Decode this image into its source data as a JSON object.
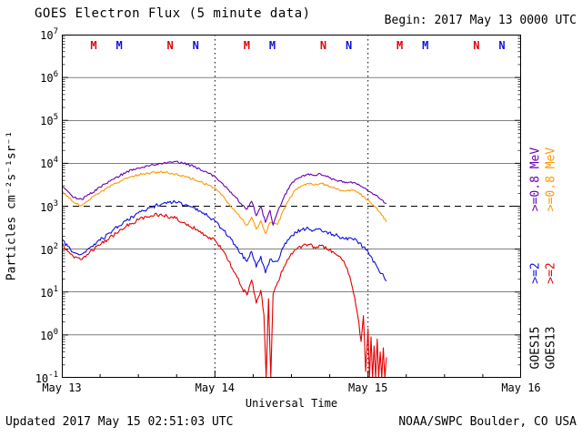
{
  "header": {
    "title": "GOES Electron Flux (5 minute data)",
    "begin_label": "Begin: 2017 May 13 0000 UTC"
  },
  "footer": {
    "updated": "Updated 2017 May 15 02:51:03 UTC",
    "source": "NOAA/SWPC Boulder, CO USA"
  },
  "axes": {
    "y_label": "Particles cm⁻²s⁻¹sr⁻¹",
    "y_exponents": [
      7,
      6,
      5,
      4,
      3,
      2,
      1,
      0,
      -1
    ],
    "x_label": "Universal Time",
    "x_ticks": [
      "May 13",
      "May 14",
      "May 15",
      "May 16"
    ]
  },
  "legend": {
    "columns": [
      {
        "satellite": "GOES15",
        "entries": [
          {
            "label": ">=0.8 MeV",
            "color": "#6a00b4"
          },
          {
            "label": ">=2",
            "color": "#0f0fe0"
          }
        ]
      },
      {
        "satellite": "GOES13",
        "entries": [
          {
            "label": ">=0.8 MeV",
            "color": "#ff9900"
          },
          {
            "label": ">=2",
            "color": "#e00000"
          }
        ]
      }
    ]
  },
  "chart_data": {
    "type": "line",
    "title": "GOES Electron Flux (5 minute data)",
    "x_axis": {
      "label": "Universal Time",
      "start": "2017 May 13 0000 UTC",
      "end": "2017 May 16 0000 UTC",
      "units": "days since start",
      "span_days": 3,
      "ticks": [
        "May 13",
        "May 14",
        "May 15",
        "May 16"
      ]
    },
    "y_axis": {
      "label": "Particles cm⁻²s⁻¹sr⁻¹",
      "scale": "log",
      "exponent_range": [
        -1,
        7
      ]
    },
    "threshold_line": {
      "exponent": 3,
      "flux": 1000,
      "style": "dashed"
    },
    "day_boundaries": [
      1,
      2
    ],
    "series": [
      {
        "name": "GOES15 >=0.8 MeV",
        "color": "#6a00b4",
        "points": [
          [
            0,
            2800
          ],
          [
            0.04,
            2200
          ],
          [
            0.08,
            1600
          ],
          [
            0.13,
            1450
          ],
          [
            0.18,
            1900
          ],
          [
            0.25,
            2800
          ],
          [
            0.33,
            4200
          ],
          [
            0.42,
            6200
          ],
          [
            0.5,
            7800
          ],
          [
            0.58,
            9000
          ],
          [
            0.66,
            9800
          ],
          [
            0.74,
            11000
          ],
          [
            0.82,
            9500
          ],
          [
            0.9,
            7500
          ],
          [
            0.96,
            5800
          ],
          [
            1.0,
            5000
          ],
          [
            1.05,
            3400
          ],
          [
            1.09,
            2400
          ],
          [
            1.13,
            1700
          ],
          [
            1.17,
            1150
          ],
          [
            1.21,
            850
          ],
          [
            1.24,
            1300
          ],
          [
            1.27,
            600
          ],
          [
            1.3,
            1000
          ],
          [
            1.33,
            420
          ],
          [
            1.36,
            800
          ],
          [
            1.38,
            360
          ],
          [
            1.41,
            750
          ],
          [
            1.45,
            1600
          ],
          [
            1.49,
            3000
          ],
          [
            1.53,
            4300
          ],
          [
            1.57,
            5100
          ],
          [
            1.61,
            5700
          ],
          [
            1.65,
            5200
          ],
          [
            1.69,
            5600
          ],
          [
            1.73,
            4900
          ],
          [
            1.77,
            4300
          ],
          [
            1.81,
            3900
          ],
          [
            1.85,
            3500
          ],
          [
            1.89,
            3700
          ],
          [
            1.93,
            3200
          ],
          [
            1.97,
            2700
          ],
          [
            2.01,
            2200
          ],
          [
            2.05,
            1800
          ],
          [
            2.09,
            1400
          ],
          [
            2.12,
            1150
          ]
        ]
      },
      {
        "name": "GOES13 >=0.8 MeV",
        "color": "#ff9900",
        "points": [
          [
            0,
            2300
          ],
          [
            0.04,
            1700
          ],
          [
            0.08,
            1200
          ],
          [
            0.13,
            1050
          ],
          [
            0.18,
            1400
          ],
          [
            0.25,
            2100
          ],
          [
            0.33,
            3100
          ],
          [
            0.42,
            4500
          ],
          [
            0.5,
            5400
          ],
          [
            0.58,
            6000
          ],
          [
            0.64,
            6300
          ],
          [
            0.72,
            5900
          ],
          [
            0.8,
            5000
          ],
          [
            0.88,
            4000
          ],
          [
            0.95,
            3200
          ],
          [
            1.0,
            2700
          ],
          [
            1.05,
            1800
          ],
          [
            1.09,
            1150
          ],
          [
            1.13,
            780
          ],
          [
            1.17,
            520
          ],
          [
            1.21,
            360
          ],
          [
            1.24,
            560
          ],
          [
            1.27,
            290
          ],
          [
            1.3,
            460
          ],
          [
            1.33,
            230
          ],
          [
            1.36,
            420
          ],
          [
            1.41,
            380
          ],
          [
            1.45,
            850
          ],
          [
            1.49,
            1600
          ],
          [
            1.53,
            2500
          ],
          [
            1.57,
            3000
          ],
          [
            1.61,
            3400
          ],
          [
            1.65,
            3100
          ],
          [
            1.69,
            3450
          ],
          [
            1.73,
            3050
          ],
          [
            1.77,
            2700
          ],
          [
            1.81,
            2450
          ],
          [
            1.85,
            2250
          ],
          [
            1.89,
            2400
          ],
          [
            1.93,
            2100
          ],
          [
            1.97,
            1700
          ],
          [
            2.01,
            1300
          ],
          [
            2.05,
            950
          ],
          [
            2.09,
            620
          ],
          [
            2.12,
            430
          ]
        ]
      },
      {
        "name": "GOES15 >=2 MeV",
        "color": "#0f0fe0",
        "points": [
          [
            0,
            160
          ],
          [
            0.04,
            115
          ],
          [
            0.08,
            82
          ],
          [
            0.13,
            76
          ],
          [
            0.18,
            105
          ],
          [
            0.25,
            160
          ],
          [
            0.33,
            270
          ],
          [
            0.42,
            460
          ],
          [
            0.5,
            700
          ],
          [
            0.58,
            950
          ],
          [
            0.66,
            1150
          ],
          [
            0.74,
            1250
          ],
          [
            0.82,
            1050
          ],
          [
            0.9,
            780
          ],
          [
            0.96,
            560
          ],
          [
            1.0,
            450
          ],
          [
            1.05,
            290
          ],
          [
            1.09,
            195
          ],
          [
            1.13,
            128
          ],
          [
            1.17,
            78
          ],
          [
            1.21,
            52
          ],
          [
            1.24,
            88
          ],
          [
            1.27,
            38
          ],
          [
            1.3,
            68
          ],
          [
            1.33,
            28
          ],
          [
            1.36,
            58
          ],
          [
            1.41,
            52
          ],
          [
            1.45,
            115
          ],
          [
            1.49,
            185
          ],
          [
            1.53,
            245
          ],
          [
            1.57,
            285
          ],
          [
            1.61,
            305
          ],
          [
            1.65,
            272
          ],
          [
            1.69,
            292
          ],
          [
            1.73,
            252
          ],
          [
            1.77,
            222
          ],
          [
            1.81,
            196
          ],
          [
            1.85,
            172
          ],
          [
            1.89,
            182
          ],
          [
            1.93,
            152
          ],
          [
            1.97,
            112
          ],
          [
            2.01,
            72
          ],
          [
            2.05,
            45
          ],
          [
            2.09,
            27
          ],
          [
            2.12,
            18
          ]
        ]
      },
      {
        "name": "GOES13 >=2 MeV",
        "color": "#e00000",
        "points": [
          [
            0,
            130
          ],
          [
            0.04,
            88
          ],
          [
            0.08,
            62
          ],
          [
            0.13,
            57
          ],
          [
            0.18,
            82
          ],
          [
            0.25,
            125
          ],
          [
            0.33,
            205
          ],
          [
            0.42,
            340
          ],
          [
            0.5,
            480
          ],
          [
            0.58,
            590
          ],
          [
            0.64,
            640
          ],
          [
            0.72,
            560
          ],
          [
            0.8,
            420
          ],
          [
            0.88,
            285
          ],
          [
            0.95,
            195
          ],
          [
            1.0,
            165
          ],
          [
            1.05,
            95
          ],
          [
            1.09,
            52
          ],
          [
            1.13,
            28
          ],
          [
            1.17,
            14
          ],
          [
            1.21,
            8.5
          ],
          [
            1.24,
            19
          ],
          [
            1.27,
            5.5
          ],
          [
            1.3,
            11
          ],
          [
            1.32,
            3
          ],
          [
            1.335,
            0.1
          ],
          [
            1.35,
            7
          ],
          [
            1.365,
            0.1
          ],
          [
            1.38,
            9
          ],
          [
            1.41,
            17
          ],
          [
            1.45,
            38
          ],
          [
            1.49,
            68
          ],
          [
            1.53,
            98
          ],
          [
            1.57,
            118
          ],
          [
            1.61,
            128
          ],
          [
            1.65,
            112
          ],
          [
            1.69,
            122
          ],
          [
            1.73,
            102
          ],
          [
            1.77,
            88
          ],
          [
            1.81,
            68
          ],
          [
            1.85,
            44
          ],
          [
            1.88,
            24
          ],
          [
            1.9,
            12
          ],
          [
            1.92,
            5
          ],
          [
            1.94,
            2
          ],
          [
            1.955,
            0.7
          ],
          [
            1.97,
            2.8
          ],
          [
            1.985,
            0.14
          ],
          [
            2.0,
            1.4
          ],
          [
            2.01,
            0.1
          ],
          [
            2.02,
            0.9
          ],
          [
            2.03,
            0.1
          ],
          [
            2.04,
            0.55
          ],
          [
            2.05,
            0.1
          ],
          [
            2.06,
            0.8
          ],
          [
            2.07,
            0.1
          ],
          [
            2.08,
            0.4
          ],
          [
            2.09,
            0.1
          ],
          [
            2.1,
            0.5
          ],
          [
            2.11,
            0.1
          ],
          [
            2.12,
            0.3
          ]
        ]
      }
    ],
    "markers": {
      "items": [
        {
          "t": 0.208,
          "label": "M",
          "color": "#e00000"
        },
        {
          "t": 0.375,
          "label": "M",
          "color": "#0f0fe0"
        },
        {
          "t": 0.708,
          "label": "N",
          "color": "#e00000"
        },
        {
          "t": 0.875,
          "label": "N",
          "color": "#0f0fe0"
        },
        {
          "t": 1.208,
          "label": "M",
          "color": "#e00000"
        },
        {
          "t": 1.375,
          "label": "M",
          "color": "#0f0fe0"
        },
        {
          "t": 1.708,
          "label": "N",
          "color": "#e00000"
        },
        {
          "t": 1.875,
          "label": "N",
          "color": "#0f0fe0"
        },
        {
          "t": 2.208,
          "label": "M",
          "color": "#e00000"
        },
        {
          "t": 2.375,
          "label": "M",
          "color": "#0f0fe0"
        },
        {
          "t": 2.708,
          "label": "N",
          "color": "#e00000"
        },
        {
          "t": 2.875,
          "label": "N",
          "color": "#0f0fe0"
        }
      ]
    }
  }
}
